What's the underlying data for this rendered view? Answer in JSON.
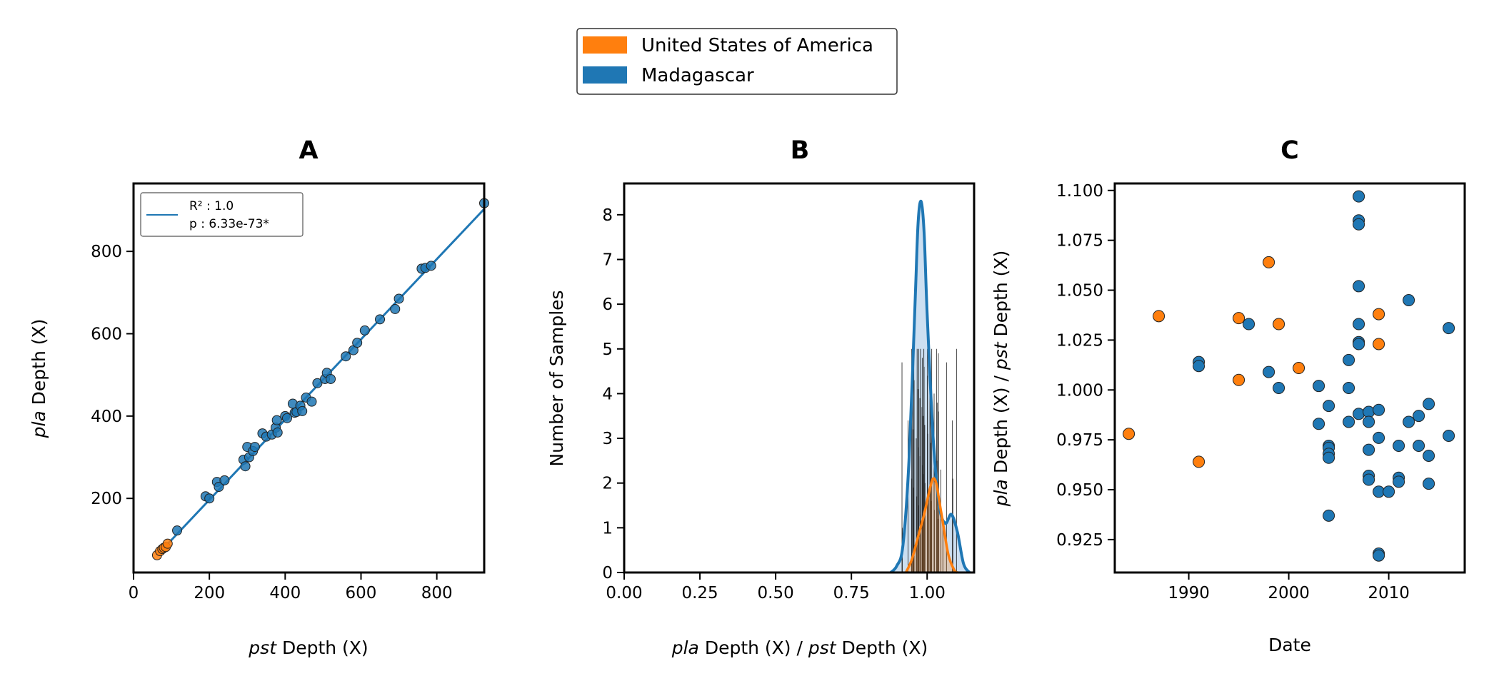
{
  "legend": {
    "entries": [
      {
        "label": "United States of America",
        "color": "#ff7f0e"
      },
      {
        "label": "Madagascar",
        "color": "#1f77b4"
      }
    ]
  },
  "colors": {
    "usa": "#ff7f0e",
    "madagascar": "#1f77b4",
    "madagascar_fill": "#c6dbef"
  },
  "chart_data": [
    {
      "type": "scatter",
      "title": "A",
      "xlabel_italic": "pst",
      "xlabel_rest": " Depth (X)",
      "ylabel_italic": "pla",
      "ylabel_rest": " Depth (X)",
      "xlim": [
        0,
        925
      ],
      "ylim": [
        20,
        965
      ],
      "xticks": [
        0,
        200,
        400,
        600,
        800
      ],
      "yticks": [
        200,
        400,
        600,
        800
      ],
      "fit_line": {
        "x": [
          62,
          925
        ],
        "y": [
          62,
          903
        ]
      },
      "inset_legend": {
        "r2": "R² : 1.0",
        "p": "p   : 6.33e-73*"
      },
      "series": [
        {
          "name": "United States of America",
          "points": [
            [
              62,
              62
            ],
            [
              70,
              72
            ],
            [
              76,
              77
            ],
            [
              80,
              80
            ],
            [
              85,
              82
            ],
            [
              90,
              90
            ]
          ]
        },
        {
          "name": "Madagascar",
          "points": [
            [
              115,
              122
            ],
            [
              190,
              205
            ],
            [
              200,
              200
            ],
            [
              220,
              240
            ],
            [
              225,
              228
            ],
            [
              240,
              244
            ],
            [
              290,
              294
            ],
            [
              295,
              278
            ],
            [
              300,
              325
            ],
            [
              305,
              300
            ],
            [
              315,
              315
            ],
            [
              320,
              325
            ],
            [
              340,
              358
            ],
            [
              350,
              350
            ],
            [
              365,
              355
            ],
            [
              375,
              372
            ],
            [
              378,
              390
            ],
            [
              380,
              360
            ],
            [
              400,
              400
            ],
            [
              405,
              395
            ],
            [
              420,
              430
            ],
            [
              425,
              408
            ],
            [
              430,
              410
            ],
            [
              440,
              425
            ],
            [
              445,
              412
            ],
            [
              455,
              445
            ],
            [
              470,
              435
            ],
            [
              485,
              480
            ],
            [
              505,
              490
            ],
            [
              510,
              505
            ],
            [
              520,
              490
            ],
            [
              560,
              545
            ],
            [
              580,
              560
            ],
            [
              590,
              578
            ],
            [
              610,
              608
            ],
            [
              650,
              635
            ],
            [
              690,
              660
            ],
            [
              700,
              685
            ],
            [
              760,
              758
            ],
            [
              770,
              760
            ],
            [
              785,
              765
            ],
            [
              925,
              917
            ]
          ]
        }
      ]
    },
    {
      "type": "area",
      "title": "B",
      "xlabel_italic1": "pla",
      "xlabel_mid": " Depth (X)  / ",
      "xlabel_italic2": "pst",
      "xlabel_rest": " Depth (X)",
      "ylabel": "Number of Samples",
      "xlim": [
        0,
        1.155
      ],
      "ylim": [
        0,
        8.7
      ],
      "xticks": [
        "0.00",
        "0.25",
        "0.50",
        "0.75",
        "1.00"
      ],
      "yticks": [
        0,
        1,
        2,
        3,
        4,
        5,
        6,
        7,
        8
      ],
      "series": [
        {
          "name": "Madagascar",
          "kde_x": [
            0.88,
            0.9,
            0.92,
            0.94,
            0.96,
            0.97,
            0.98,
            0.99,
            1.0,
            1.02,
            1.04,
            1.06,
            1.08,
            1.1,
            1.12,
            1.14
          ],
          "kde_y": [
            0,
            0.15,
            0.6,
            2.5,
            6.0,
            7.8,
            8.3,
            7.6,
            5.8,
            3.0,
            1.5,
            1.1,
            1.3,
            0.9,
            0.2,
            0
          ]
        },
        {
          "name": "United States of America",
          "kde_x": [
            0.93,
            0.95,
            0.97,
            0.99,
            1.01,
            1.02,
            1.03,
            1.04,
            1.05,
            1.07,
            1.09,
            1.1
          ],
          "kde_y": [
            0,
            0.3,
            0.8,
            1.3,
            1.9,
            2.1,
            2.0,
            1.6,
            1.2,
            0.4,
            0.05,
            0
          ]
        }
      ],
      "rug_values": [
        0.918,
        0.917,
        0.937,
        0.949,
        0.949,
        0.952,
        0.953,
        0.955,
        0.956,
        0.957,
        0.964,
        0.966,
        0.967,
        0.97,
        0.971,
        0.972,
        0.972,
        0.976,
        0.976,
        0.977,
        0.978,
        0.983,
        0.984,
        0.984,
        0.984,
        0.987,
        0.988,
        0.989,
        0.99,
        0.992,
        0.993,
        1.001,
        1.001,
        1.002,
        1.005,
        1.009,
        1.011,
        1.012,
        1.014,
        1.015,
        1.023,
        1.023,
        1.024,
        1.031,
        1.033,
        1.033,
        1.036,
        1.037,
        1.038,
        1.045,
        1.052,
        1.064,
        1.083,
        1.085,
        1.097
      ]
    },
    {
      "type": "scatter",
      "title": "C",
      "xlabel": "Date",
      "ylabel_italic1": "pla",
      "ylabel_mid": " Depth (X)  / ",
      "ylabel_italic2": "pst",
      "ylabel_rest": " Depth (X)",
      "xlim": [
        1982.6,
        2017.6
      ],
      "ylim": [
        0.9085,
        1.1035
      ],
      "xticks": [
        1990,
        2000,
        2010
      ],
      "yticks": [
        "0.925",
        "0.950",
        "0.975",
        "1.000",
        "1.025",
        "1.050",
        "1.075",
        "1.100"
      ],
      "series": [
        {
          "name": "United States of America",
          "points": [
            [
              1984,
              0.978
            ],
            [
              1987,
              1.037
            ],
            [
              1991,
              0.964
            ],
            [
              1995,
              1.036
            ],
            [
              1995,
              1.005
            ],
            [
              1998,
              1.064
            ],
            [
              1999,
              1.033
            ],
            [
              2001,
              1.011
            ],
            [
              2009,
              1.038
            ],
            [
              2009,
              1.023
            ]
          ]
        },
        {
          "name": "Madagascar",
          "points": [
            [
              1991,
              1.014
            ],
            [
              1991,
              1.012
            ],
            [
              1996,
              1.033
            ],
            [
              1998,
              1.009
            ],
            [
              1999,
              1.001
            ],
            [
              2003,
              1.002
            ],
            [
              2003,
              0.983
            ],
            [
              2004,
              0.992
            ],
            [
              2004,
              0.972
            ],
            [
              2004,
              0.971
            ],
            [
              2004,
              0.968
            ],
            [
              2004,
              0.966
            ],
            [
              2004,
              0.937
            ],
            [
              2006,
              1.015
            ],
            [
              2006,
              1.001
            ],
            [
              2006,
              0.984
            ],
            [
              2007,
              1.097
            ],
            [
              2007,
              1.085
            ],
            [
              2007,
              1.083
            ],
            [
              2007,
              1.052
            ],
            [
              2007,
              1.033
            ],
            [
              2007,
              1.024
            ],
            [
              2007,
              1.023
            ],
            [
              2007,
              0.988
            ],
            [
              2008,
              0.989
            ],
            [
              2008,
              0.984
            ],
            [
              2008,
              0.97
            ],
            [
              2008,
              0.957
            ],
            [
              2008,
              0.955
            ],
            [
              2009,
              0.99
            ],
            [
              2009,
              0.976
            ],
            [
              2009,
              0.949
            ],
            [
              2009,
              0.918
            ],
            [
              2009,
              0.917
            ],
            [
              2010,
              0.949
            ],
            [
              2011,
              0.972
            ],
            [
              2011,
              0.956
            ],
            [
              2011,
              0.954
            ],
            [
              2012,
              1.045
            ],
            [
              2012,
              0.984
            ],
            [
              2013,
              0.987
            ],
            [
              2013,
              0.972
            ],
            [
              2014,
              0.993
            ],
            [
              2014,
              0.967
            ],
            [
              2014,
              0.953
            ],
            [
              2016,
              1.031
            ],
            [
              2016,
              0.977
            ]
          ]
        }
      ]
    }
  ]
}
